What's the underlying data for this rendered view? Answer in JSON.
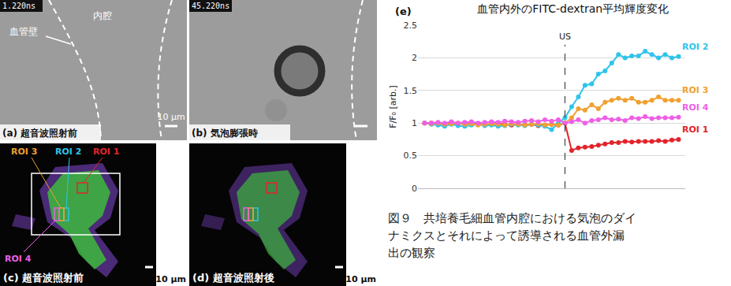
{
  "chart_data": {
    "type": "line",
    "title": "血管内外のFITC-dextran平均輝度変化",
    "y_label": "F/F₀ [arb.]",
    "annotations": [
      {
        "text": "(e)"
      },
      {
        "text": "US",
        "x": 21
      }
    ],
    "x": [
      0,
      1,
      2,
      3,
      4,
      5,
      6,
      7,
      8,
      9,
      10,
      11,
      12,
      13,
      14,
      15,
      16,
      17,
      18,
      19,
      20,
      21,
      22,
      23,
      24,
      25,
      26,
      27,
      28,
      29,
      30,
      31,
      32,
      33,
      34,
      35,
      36,
      37,
      38
    ],
    "xlim": [
      -1,
      39
    ],
    "ylim": [
      0,
      2.5
    ],
    "yticks": [
      0,
      0.5,
      1,
      1.5,
      2,
      2.5
    ],
    "grid": true,
    "tick_labels": "y",
    "marker": "circle",
    "line_style": "solid",
    "series": [
      {
        "name": "ROI 1",
        "color": "#e3242b",
        "values": [
          1,
          1,
          0.99,
          0.98,
          1,
          0.99,
          1,
          0.98,
          0.99,
          0.97,
          0.98,
          0.99,
          0.98,
          0.97,
          0.98,
          0.97,
          0.98,
          0.96,
          0.97,
          0.98,
          0.97,
          1.0,
          0.58,
          0.62,
          0.63,
          0.64,
          0.66,
          0.68,
          0.7,
          0.7,
          0.72,
          0.71,
          0.72,
          0.72,
          0.72,
          0.73,
          0.72,
          0.74,
          0.75
        ]
      },
      {
        "name": "ROI 2",
        "color": "#2fc4ea",
        "values": [
          1,
          0.98,
          0.97,
          0.95,
          0.98,
          0.96,
          0.95,
          0.97,
          0.98,
          0.96,
          0.97,
          0.95,
          0.96,
          0.98,
          0.97,
          0.96,
          0.98,
          0.97,
          0.95,
          0.9,
          1.0,
          1.08,
          1.25,
          1.4,
          1.58,
          1.6,
          1.75,
          1.8,
          1.92,
          2.05,
          2.0,
          2.03,
          2.03,
          2.1,
          2.05,
          2.0,
          2.05,
          2.0,
          2.02
        ]
      },
      {
        "name": "ROI 3",
        "color": "#f0a030",
        "values": [
          1,
          0.99,
          1,
          0.98,
          0.99,
          1,
          0.98,
          0.99,
          0.97,
          0.98,
          0.99,
          0.98,
          0.97,
          0.99,
          0.98,
          0.97,
          0.98,
          0.99,
          0.97,
          0.98,
          0.97,
          1.0,
          1.08,
          1.22,
          1.2,
          1.28,
          1.22,
          1.32,
          1.35,
          1.38,
          1.35,
          1.38,
          1.32,
          1.32,
          1.35,
          1.4,
          1.35,
          1.35,
          1.35
        ]
      },
      {
        "name": "ROI 4",
        "color": "#ee5fe6",
        "values": [
          1,
          1,
          1.01,
          1,
          1.02,
          1,
          1.01,
          1.02,
          1,
          1.01,
          1.02,
          1.01,
          1.03,
          1.02,
          1.01,
          1.03,
          1.04,
          1.02,
          1.05,
          1.03,
          1.05,
          1.0,
          1.02,
          1.05,
          1.0,
          1.04,
          1.05,
          1.08,
          1.05,
          1.06,
          1.04,
          1.08,
          1.07,
          1.1,
          1.07,
          1.08,
          1.08,
          1.08,
          1.09
        ]
      }
    ]
  },
  "panels": [
    {
      "label": "(a) 超音波照射前",
      "timestamp": "1.220ns",
      "texts": [
        "血管壁",
        "内腔"
      ],
      "scale_bar": "10 μm"
    },
    {
      "label": "(b) 気泡膨張時",
      "timestamp": "45.220ns"
    },
    {
      "label": "(c) 超音波照射前",
      "scale_bar": "10 μm",
      "rois": [
        "ROI 3",
        "ROI 2",
        "ROI 1",
        "ROI 4"
      ]
    },
    {
      "label": "(d) 超音波照射後",
      "scale_bar": "10 μm"
    }
  ],
  "caption": [
    "図９　共培養毛細血管内腔における気泡のダイ",
    "ナミクスとそれによって誘導される血管外漏",
    "出の観察"
  ]
}
